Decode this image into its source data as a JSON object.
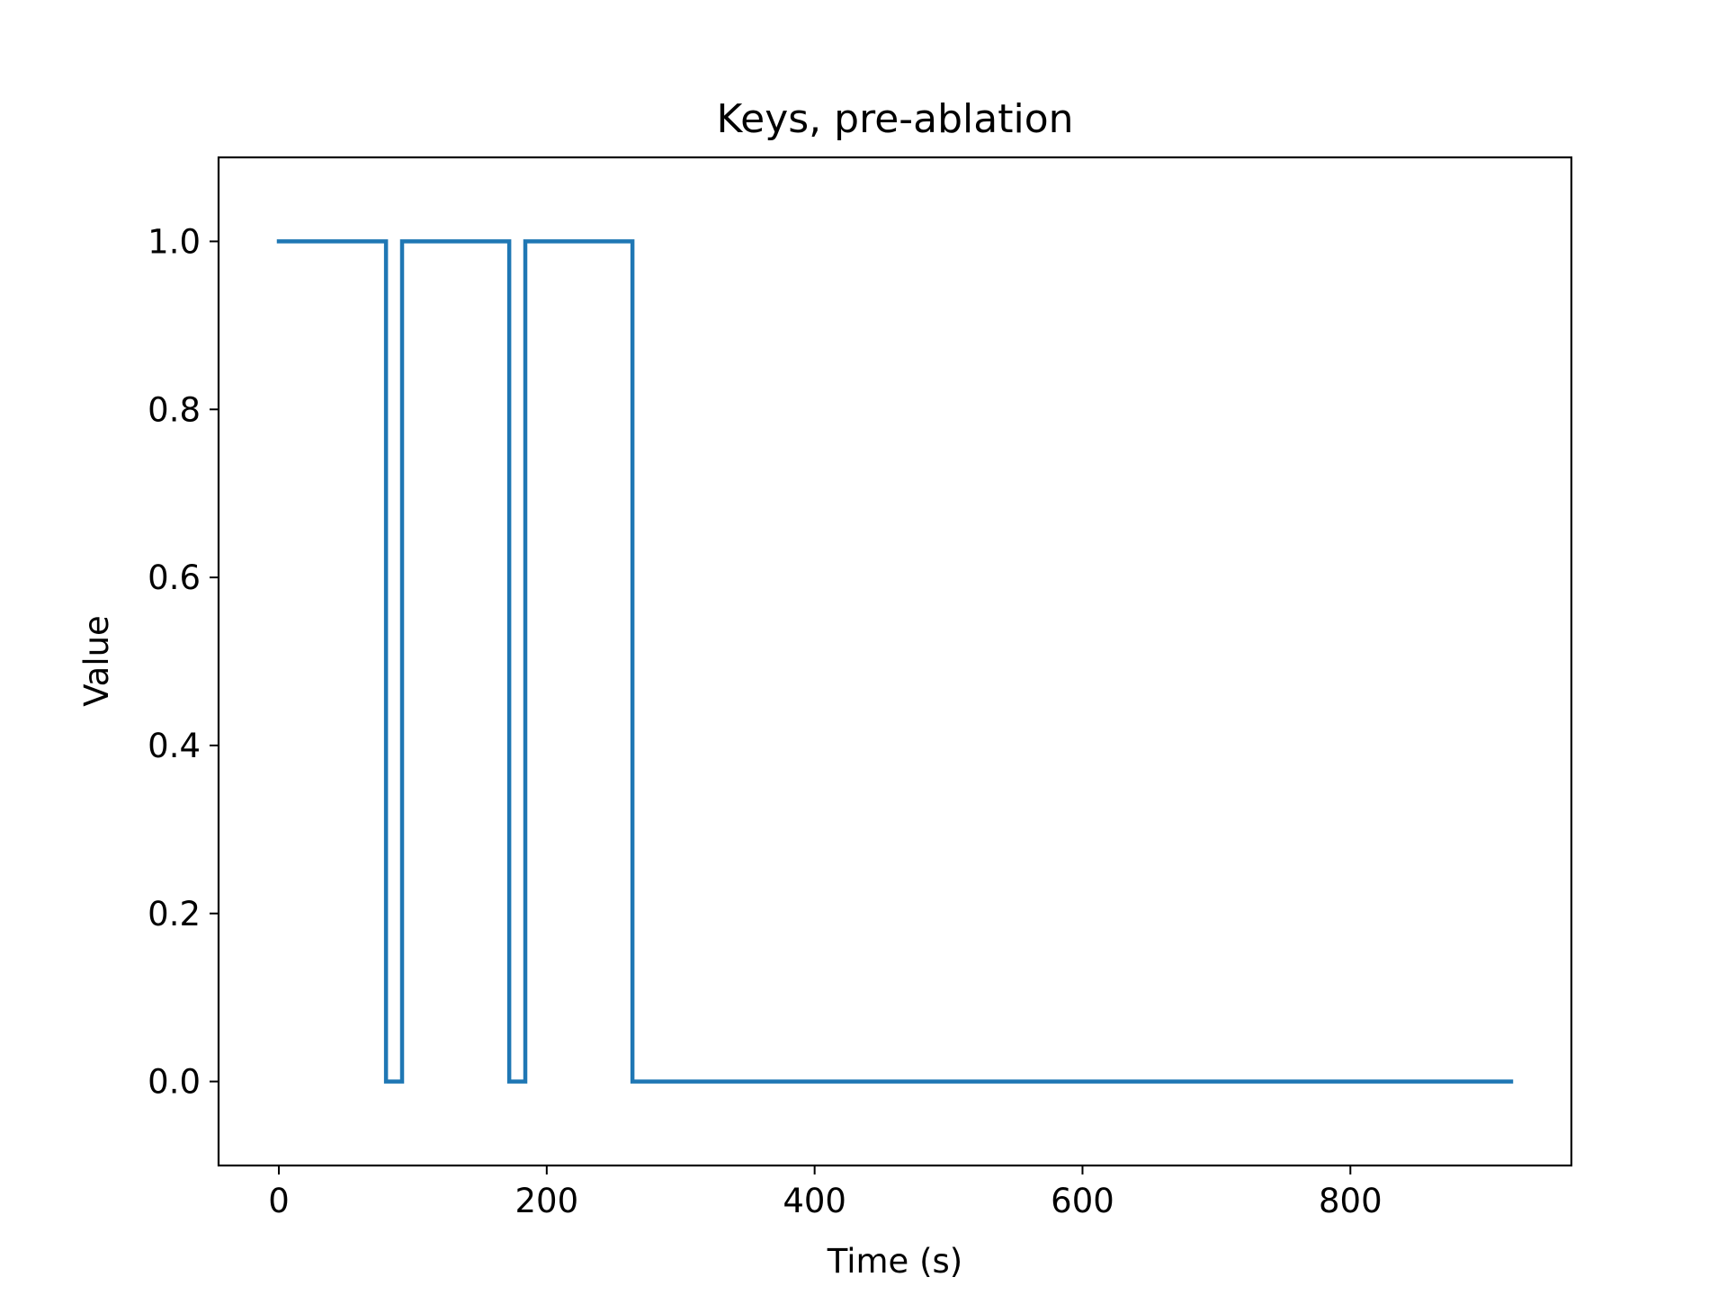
{
  "chart_data": {
    "type": "line",
    "title": "Keys, pre-ablation",
    "xlabel": "Time (s)",
    "ylabel": "Value",
    "xlim": [
      -45,
      965
    ],
    "ylim": [
      -0.1,
      1.1
    ],
    "xticks": [
      0,
      200,
      400,
      600,
      800
    ],
    "xtick_labels": [
      "0",
      "200",
      "400",
      "600",
      "800"
    ],
    "yticks": [
      0.0,
      0.2,
      0.4,
      0.6,
      0.8,
      1.0
    ],
    "ytick_labels": [
      "0.0",
      "0.2",
      "0.4",
      "0.6",
      "0.8",
      "1.0"
    ],
    "grid": false,
    "legend": "none",
    "line_color": "#1f77b4",
    "series": [
      {
        "x": [
          0,
          80,
          80,
          92,
          92,
          172,
          172,
          184,
          184,
          264,
          264,
          920
        ],
        "y": [
          1,
          1,
          0,
          0,
          1,
          1,
          0,
          0,
          1,
          1,
          0,
          0
        ]
      }
    ]
  }
}
